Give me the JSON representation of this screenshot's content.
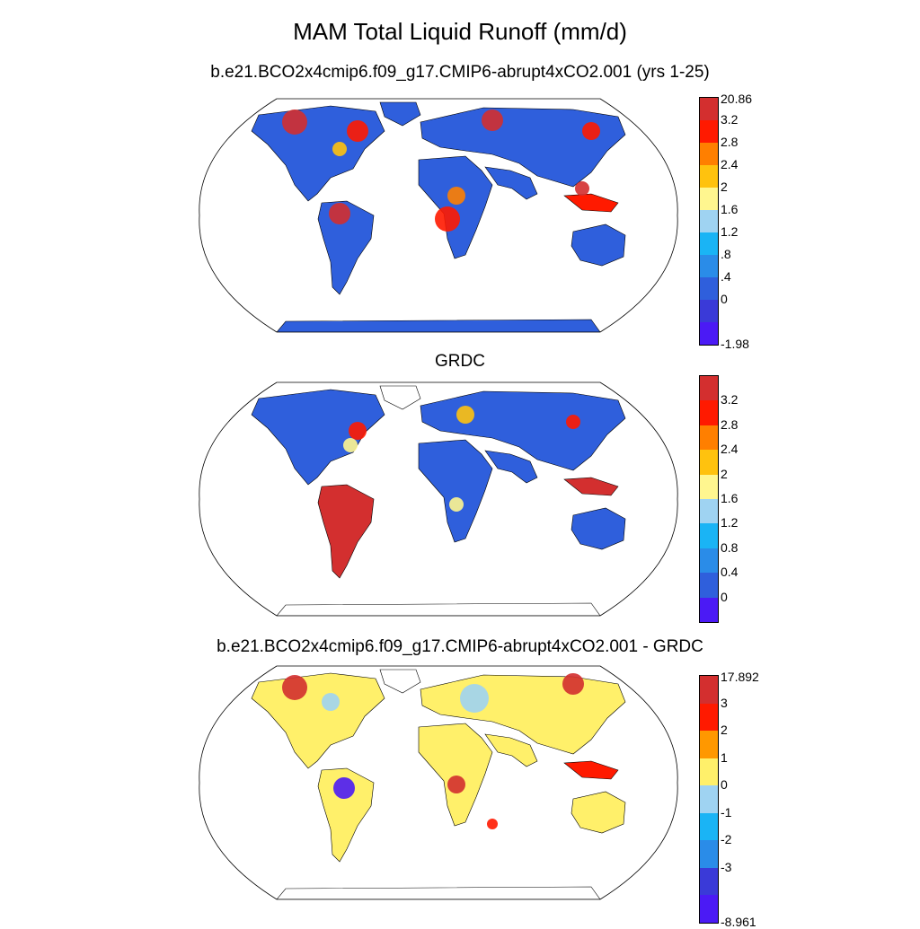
{
  "title": "MAM Total Liquid Runoff (mm/d)",
  "panels": [
    {
      "title": "b.e21.BCO2x4cmip6.f09_g17.CMIP6-abrupt4xCO2.001 (yrs 1-25)",
      "colorbar": {
        "labels": [
          "20.86",
          "3.2",
          "2.8",
          "2.4",
          "2",
          "1.6",
          "1.2",
          ".8",
          ".4",
          "0",
          "-1.98"
        ],
        "colors": [
          "#d32f2f",
          "#ff1a00",
          "#ff7f00",
          "#ffc20e",
          "#fff68f",
          "#9fd3f2",
          "#1ab4f5",
          "#2a8ce8",
          "#2f5fdc",
          "#3a3ad8",
          "#4b1af5"
        ]
      }
    },
    {
      "title": "GRDC",
      "colorbar": {
        "labels": [
          "3.2",
          "2.8",
          "2.4",
          "2",
          "1.6",
          "1.2",
          "0.8",
          "0.4",
          "0"
        ],
        "colors": [
          "#d32f2f",
          "#ff1a00",
          "#ff7f00",
          "#ffc20e",
          "#fff68f",
          "#9fd3f2",
          "#1ab4f5",
          "#2a8ce8",
          "#2f5fdc",
          "#4b1af5"
        ]
      }
    },
    {
      "title": "b.e21.BCO2x4cmip6.f09_g17.CMIP6-abrupt4xCO2.001 - GRDC",
      "colorbar": {
        "labels": [
          "17.892",
          "3",
          "2",
          "1",
          "0",
          "-1",
          "-2",
          "-3",
          "-8.961"
        ],
        "colors": [
          "#d32f2f",
          "#ff1a00",
          "#ff9800",
          "#fff06a",
          "#9fd3f2",
          "#1ab4f5",
          "#2a8ce8",
          "#3a3ad8",
          "#4b1af5"
        ]
      }
    }
  ]
}
